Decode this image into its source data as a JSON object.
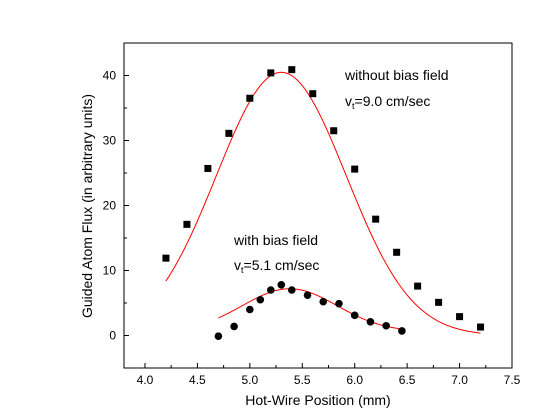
{
  "chart_data": {
    "type": "scatter",
    "xlabel": "Hot-Wire Position (mm)",
    "ylabel": "Guided Atom Flux (in arbitrary units)",
    "xlim": [
      3.8,
      7.5
    ],
    "ylim": [
      -5,
      45
    ],
    "xticks": [
      4.0,
      4.5,
      5.0,
      5.5,
      6.0,
      6.5,
      7.0,
      7.5
    ],
    "xtick_labels": [
      "4.0",
      "4.5",
      "5.0",
      "5.5",
      "6.0",
      "6.5",
      "7.0",
      "7.5"
    ],
    "yticks": [
      0,
      10,
      20,
      30,
      40
    ],
    "ytick_labels": [
      "0",
      "10",
      "20",
      "30",
      "40"
    ],
    "grid": false,
    "series": [
      {
        "marker": "square",
        "color": "#000000",
        "x": [
          4.2,
          4.4,
          4.6,
          4.8,
          5.0,
          5.2,
          5.4,
          5.6,
          5.8,
          6.0,
          6.2,
          6.4,
          6.6,
          6.8,
          7.0,
          7.2
        ],
        "y": [
          11.9,
          17.1,
          25.7,
          31.1,
          36.5,
          40.4,
          40.9,
          37.2,
          31.5,
          25.6,
          17.9,
          12.8,
          7.6,
          5.1,
          2.9,
          1.3
        ],
        "fit": {
          "color": "#ff0000",
          "x0": 5.3,
          "amplitude": 40.5,
          "sigma": 0.62,
          "offset": 0,
          "from": 4.2,
          "to": 7.2
        }
      },
      {
        "marker": "circle",
        "color": "#000000",
        "x": [
          4.7,
          4.85,
          5.0,
          5.1,
          5.2,
          5.3,
          5.4,
          5.55,
          5.7,
          5.85,
          6.0,
          6.15,
          6.3,
          6.45
        ],
        "y": [
          -0.1,
          1.4,
          4.0,
          5.5,
          7.0,
          7.8,
          7.0,
          6.2,
          5.2,
          4.9,
          3.1,
          2.1,
          1.5,
          0.7
        ],
        "fit": {
          "color": "#ff0000",
          "x0": 5.38,
          "amplitude": 6.6,
          "sigma": 0.45,
          "offset": 0.6,
          "from": 4.7,
          "to": 6.45
        }
      }
    ],
    "annotations": [
      {
        "line1": "without bias field",
        "line2_main": "v",
        "line2_sub": "t",
        "line2_rest": "=9.0 cm/sec"
      },
      {
        "line1": "with bias field",
        "line2_main": "v",
        "line2_sub": "t",
        "line2_rest": "=5.1 cm/sec"
      }
    ]
  }
}
